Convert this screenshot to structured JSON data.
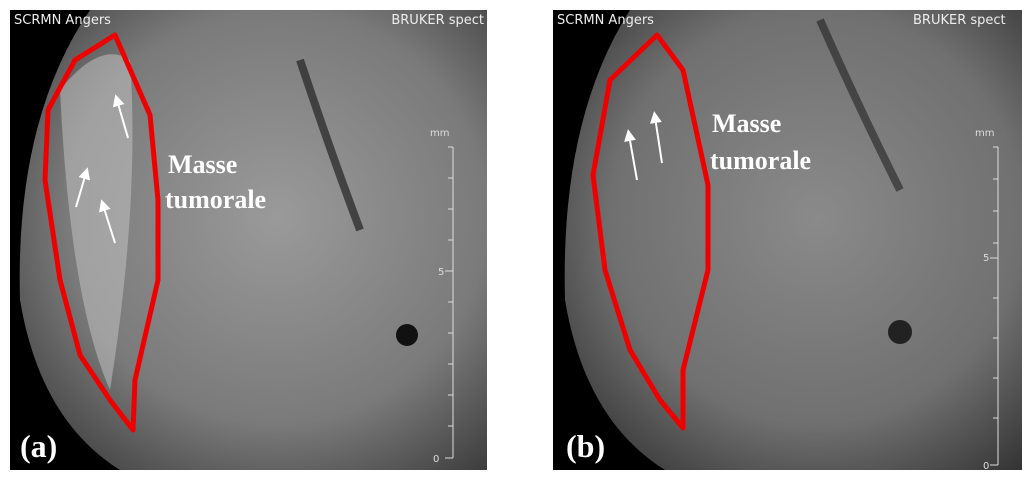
{
  "panels": [
    {
      "header_left": "SCRMN Angers",
      "header_right": "BRUKER spect",
      "annotation": [
        "Masse",
        "tumorale"
      ],
      "scale_unit": "mm",
      "scale_labels": [
        "5",
        "0"
      ],
      "label": "(a)"
    },
    {
      "header_left": "SCRMN Angers",
      "header_right": "BRUKER spect",
      "annotation": [
        "Masse",
        "tumorale"
      ],
      "scale_unit": "mm",
      "scale_labels": [
        "5",
        "0"
      ],
      "label": "(b)"
    }
  ]
}
